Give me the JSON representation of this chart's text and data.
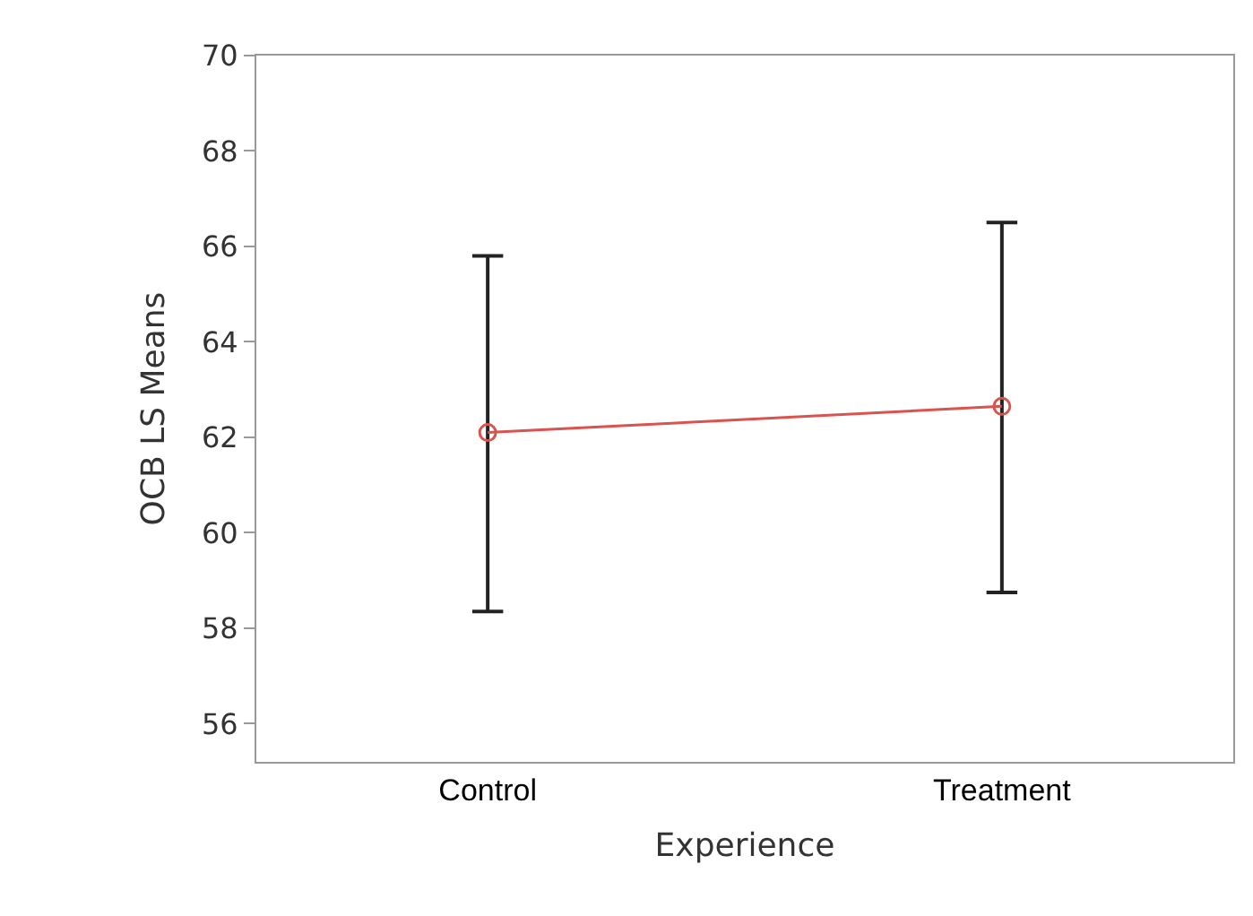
{
  "chart_data": {
    "type": "line",
    "xlabel": "Experience",
    "ylabel": "OCB LS Means",
    "categories": [
      "Control",
      "Treatment"
    ],
    "series": [
      {
        "color": "#d9534f",
        "values": [
          62.1,
          62.65
        ],
        "errors": [
          [
            58.35,
            65.8
          ],
          [
            58.75,
            66.5
          ]
        ]
      }
    ],
    "ylim": [
      55.2,
      70
    ],
    "yticks": [
      56,
      58,
      60,
      62,
      64,
      66,
      68,
      70
    ],
    "marker": "circle",
    "line_style": "solid"
  }
}
